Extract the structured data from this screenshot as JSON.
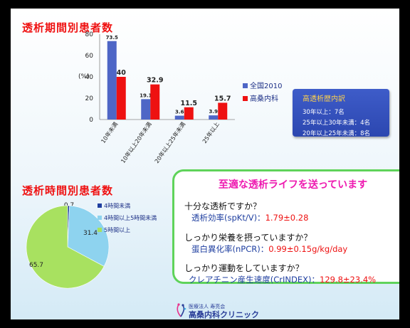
{
  "titles": {
    "period": "透析期間別患者数",
    "hours": "透析時間別患者数"
  },
  "colors": {
    "national": "#4e66c6",
    "clinic": "#ee1111",
    "pie_4h_under": "#1f3fa0",
    "pie_4_5h": "#8ed3ef",
    "pie_5h_over": "#a8e160",
    "info_box": "#3450bd",
    "note_border": "#5fd35a",
    "heading_pink": "#ee1ab0"
  },
  "chart_data": [
    {
      "type": "bar",
      "ylabel": "(%)",
      "ylim": [
        0,
        80
      ],
      "yticks": [
        0,
        20,
        40,
        60,
        80
      ],
      "categories": [
        "10年未満",
        "10年以上20年未満",
        "20年以上25年未満",
        "25年以上"
      ],
      "series": [
        {
          "name": "全国2010",
          "values": [
            73.5,
            19.1,
            3.6,
            3.9
          ],
          "labels": [
            "73.5",
            "19.1",
            "3.6",
            "3.9"
          ]
        },
        {
          "name": "高桑内科",
          "values": [
            40,
            32.9,
            11.5,
            15.7
          ],
          "labels": [
            "40",
            "32.9",
            "11.5",
            "15.7"
          ]
        }
      ],
      "legend_position": "right"
    },
    {
      "type": "pie",
      "slices": [
        {
          "name": "4時間未満",
          "value": 0.7,
          "label": "0.7"
        },
        {
          "name": "4時間以上5時間未満",
          "value": 31.4,
          "label": "31.4"
        },
        {
          "name": "5時間以上",
          "value": 65.7,
          "label": "65.7"
        }
      ],
      "legend_position": "top-right"
    }
  ],
  "info_box": {
    "heading": "高透析歴内訳",
    "lines": [
      "30年以上：7名",
      "25年以上30年未満：4名",
      "20年以上25年未満：8名"
    ]
  },
  "note": {
    "heading": "至適な透析ライフを送っています",
    "q1": "十分な透析ですか？",
    "a1_label": "透析効率(spKt/V)：",
    "a1_value": "1.79±0.28",
    "q2": "しっかり栄養を摂っていますか？",
    "a2_label": "蛋白異化率(nPCR)：",
    "a2_value": "0.99±0.15g/kg/day",
    "q3": "しっかり運動をしていますか？",
    "a3_label": "クレアチニン産生速度(CrINDEX)：",
    "a3_value": "129.8±23.4%"
  },
  "footer": {
    "org": "医療法人 寿亮会",
    "clinic": "高桑内科クリニック"
  }
}
